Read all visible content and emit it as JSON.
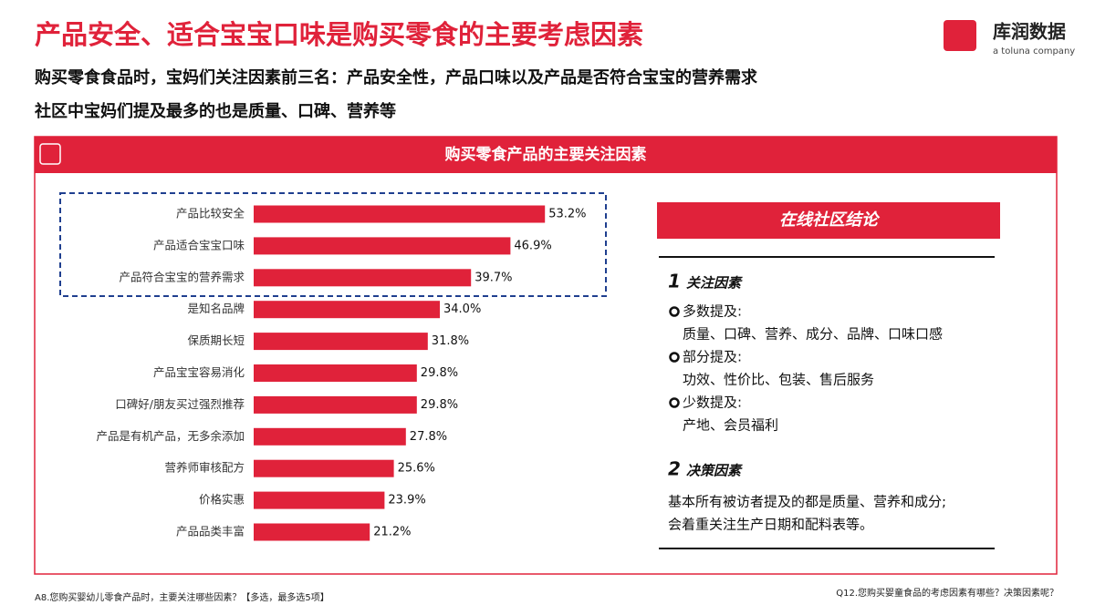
{
  "header": {
    "title": "产品安全、适合宝宝口味是购买零食的主要考虑因素",
    "subtitle_lines": [
      "购买零食食品时，宝妈们关注因素前三名：产品安全性，产品口味以及产品是否符合宝宝的营养需求",
      "社区中宝妈们提及最多的也是质量、口碑、营养等"
    ],
    "logo_text": "库润数据",
    "logo_sub": "a toluna company"
  },
  "chart_data": {
    "type": "bar",
    "orientation": "horizontal",
    "title": "购买零食产品的主要关注因素",
    "categories": [
      "产品比较安全",
      "产品适合宝宝口味",
      "产品符合宝宝的营养需求",
      "是知名品牌",
      "保质期长短",
      "产品宝宝容易消化",
      "口碑好/朋友买过强烈推荐",
      "产品是有机产品，无多余添加",
      "营养师审核配方",
      "价格实惠",
      "产品品类丰富"
    ],
    "values": [
      53.2,
      46.9,
      39.7,
      34.0,
      31.8,
      29.8,
      29.8,
      27.8,
      25.6,
      23.9,
      21.2
    ],
    "value_labels": [
      "53.2%",
      "46.9%",
      "39.7%",
      "34.0%",
      "31.8%",
      "29.8%",
      "29.8%",
      "27.8%",
      "25.6%",
      "23.9%",
      "21.2%"
    ],
    "color": "#e0223a"
  },
  "panel": {
    "title": "在线社区结论",
    "sections": [
      {
        "number": "1",
        "heading": "关注因素",
        "items": [
          {
            "label": "多数提及:",
            "detail": "质量、口碑、营养、成分、品牌、口味口感"
          },
          {
            "label": "部分提及:",
            "detail": "功效、性价比、包装、售后服务"
          },
          {
            "label": "少数提及:",
            "detail": "产地、会员福利"
          }
        ]
      },
      {
        "number": "2",
        "heading": "决策因素",
        "lines": [
          "基本所有被访者提及的都是质量、营养和成分;",
          "会着重关注生产日期和配料表等。"
        ]
      }
    ]
  },
  "footnotes": {
    "left": "A8.您购买婴幼儿零食产品时，主要关注哪些因素？【多选，最多选5项】",
    "right": "Q12.您购买婴童食品的考虑因素有哪些？决策因素呢？"
  }
}
